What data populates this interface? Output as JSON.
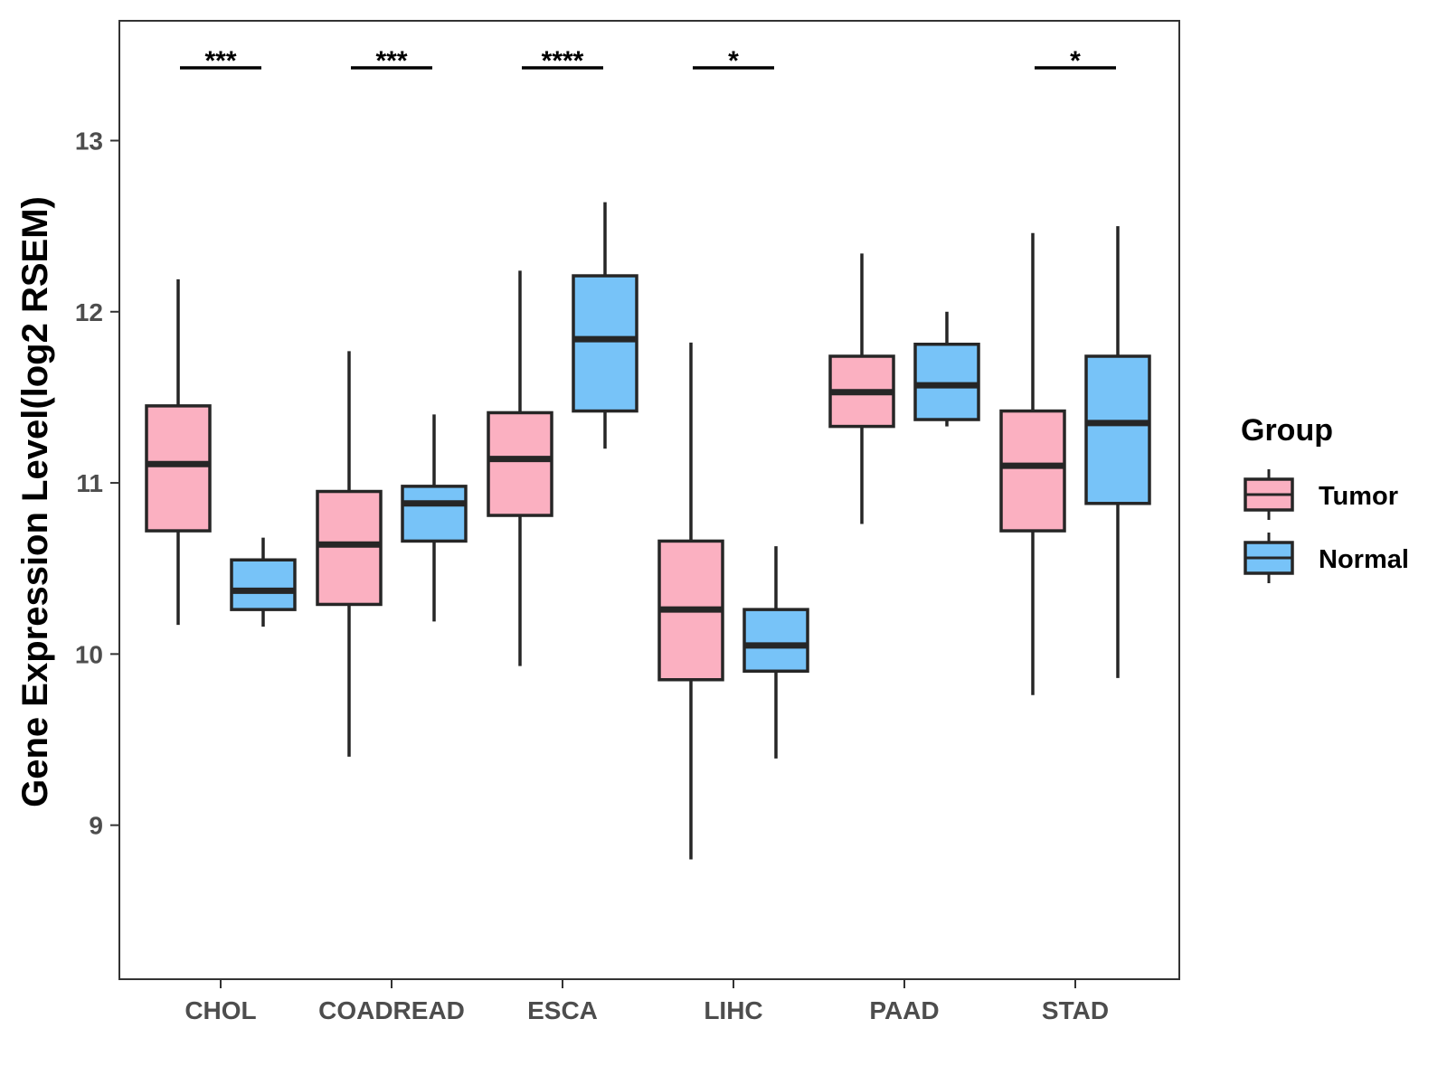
{
  "chart_data": {
    "type": "boxplot",
    "title": "",
    "xlabel": "",
    "ylabel": "Gene Expression Level(log2 RSEM)",
    "ylim": [
      8.1,
      13.7
    ],
    "yticks": [
      9,
      10,
      11,
      12,
      13
    ],
    "grid": false,
    "legend": {
      "title": "Group",
      "position": "right",
      "entries": [
        "Tumor",
        "Normal"
      ]
    },
    "categories": [
      "CHOL",
      "COADREAD",
      "ESCA",
      "LIHC",
      "PAAD",
      "STAD"
    ],
    "series": [
      {
        "name": "Tumor",
        "color": "#fbb0c1",
        "boxes": [
          {
            "min": 10.17,
            "q1": 10.72,
            "median": 11.11,
            "q3": 11.45,
            "max": 12.19
          },
          {
            "min": 9.4,
            "q1": 10.29,
            "median": 10.64,
            "q3": 10.95,
            "max": 11.77
          },
          {
            "min": 9.93,
            "q1": 10.81,
            "median": 11.14,
            "q3": 11.41,
            "max": 12.24
          },
          {
            "min": 8.8,
            "q1": 9.85,
            "median": 10.26,
            "q3": 10.66,
            "max": 11.82
          },
          {
            "min": 10.76,
            "q1": 11.33,
            "median": 11.53,
            "q3": 11.74,
            "max": 12.34
          },
          {
            "min": 9.76,
            "q1": 10.72,
            "median": 11.1,
            "q3": 11.42,
            "max": 12.46
          }
        ]
      },
      {
        "name": "Normal",
        "color": "#77c3f8",
        "boxes": [
          {
            "min": 10.16,
            "q1": 10.26,
            "median": 10.37,
            "q3": 10.55,
            "max": 10.68
          },
          {
            "min": 10.19,
            "q1": 10.66,
            "median": 10.88,
            "q3": 10.98,
            "max": 11.4
          },
          {
            "min": 11.2,
            "q1": 11.42,
            "median": 11.84,
            "q3": 12.21,
            "max": 12.64
          },
          {
            "min": 9.39,
            "q1": 9.9,
            "median": 10.05,
            "q3": 10.26,
            "max": 10.63
          },
          {
            "min": 11.33,
            "q1": 11.37,
            "median": 11.57,
            "q3": 11.81,
            "max": 12.0
          },
          {
            "min": 9.86,
            "q1": 10.88,
            "median": 11.35,
            "q3": 11.74,
            "max": 12.5
          }
        ]
      }
    ],
    "significance": [
      "***",
      "***",
      "****",
      "*",
      "",
      "*"
    ]
  }
}
